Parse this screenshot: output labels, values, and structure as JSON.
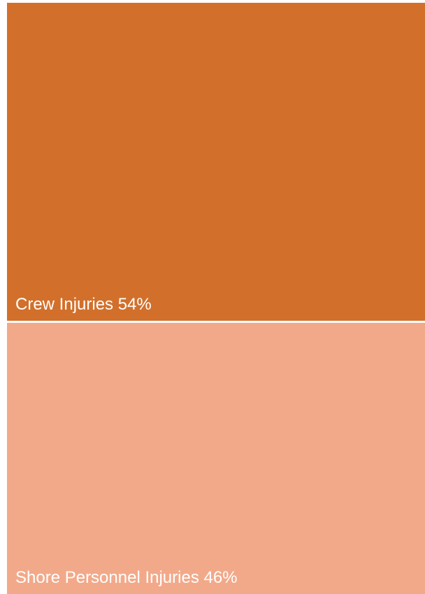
{
  "chart_data": {
    "type": "treemap",
    "title": "",
    "categories": [
      "Crew Injuries",
      "Shore Personnel Injuries"
    ],
    "values": [
      54,
      46
    ],
    "unit": "%",
    "labels": [
      "Crew Injuries 54%",
      "Shore Personnel Injuries 46%"
    ],
    "colors": [
      "#d2702b",
      "#f2a98a"
    ],
    "divider_color": "#ffffff",
    "legend": "none"
  }
}
